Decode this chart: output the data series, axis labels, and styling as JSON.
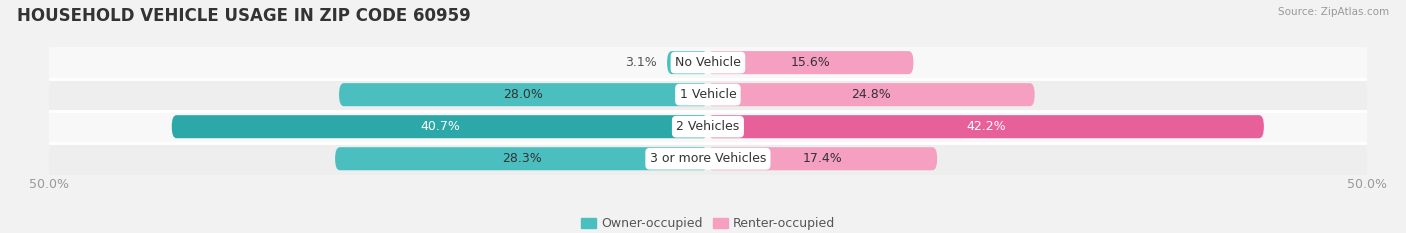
{
  "title": "HOUSEHOLD VEHICLE USAGE IN ZIP CODE 60959",
  "source": "Source: ZipAtlas.com",
  "categories": [
    "No Vehicle",
    "1 Vehicle",
    "2 Vehicles",
    "3 or more Vehicles"
  ],
  "owner_values": [
    3.1,
    28.0,
    40.7,
    28.3
  ],
  "renter_values": [
    15.6,
    24.8,
    42.2,
    17.4
  ],
  "owner_color": "#4bbfbf",
  "renter_color": "#f5a0c0",
  "owner_color_dark": "#2ca8a8",
  "renter_color_dark": "#e8609a",
  "bg_color": "#f2f2f2",
  "row_colors": [
    "#f8f8f8",
    "#eeeeee"
  ],
  "separator_color": "#ffffff",
  "axis_max": 50.0,
  "legend_owner": "Owner-occupied",
  "legend_renter": "Renter-occupied",
  "title_fontsize": 12,
  "label_fontsize": 9,
  "category_fontsize": 9,
  "axis_label_fontsize": 9,
  "bar_height": 0.72,
  "highlight_row": 2
}
